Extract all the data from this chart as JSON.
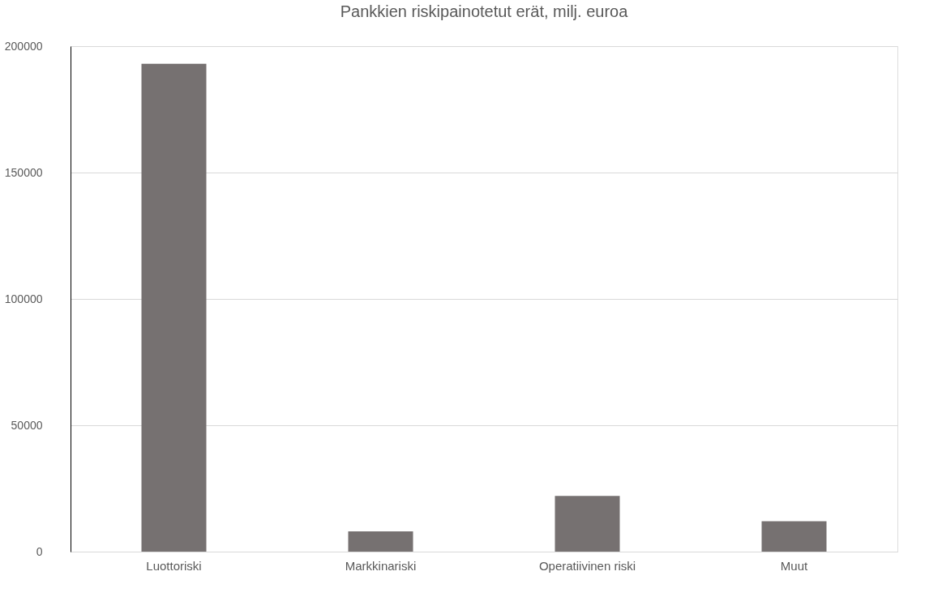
{
  "chart_data": {
    "type": "bar",
    "title": "Pankkien riskipainotetut erät, milj. euroa",
    "categories": [
      "Luottoriski",
      "Markkinariski",
      "Operatiivinen riski",
      "Muut"
    ],
    "values": [
      193000,
      8000,
      22000,
      12000
    ],
    "color": "#767171",
    "ylim": [
      0,
      200000
    ],
    "yticks": [
      0,
      50000,
      100000,
      150000,
      200000
    ],
    "grid": "y"
  }
}
